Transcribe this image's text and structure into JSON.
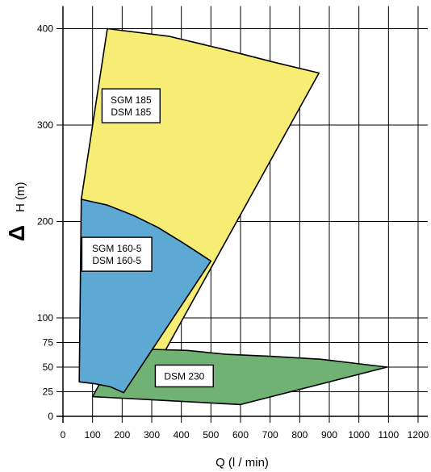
{
  "chart_data": {
    "type": "area",
    "xlabel": "Q (l / min)",
    "ylabel": "H (m)",
    "ylabel_symbol": "Δ",
    "xlim": [
      0,
      1200
    ],
    "ylim": [
      0,
      400
    ],
    "x_ticks": [
      0,
      100,
      200,
      300,
      400,
      500,
      600,
      700,
      800,
      900,
      1000,
      1100,
      1200
    ],
    "y_ticks": [
      0,
      25,
      50,
      75,
      100,
      200,
      300,
      400
    ],
    "grid": true,
    "colors": {
      "sgm185": "#f7ec74",
      "sgm160": "#5ea9d4",
      "dsm230": "#6fb273",
      "outline": "#000000",
      "grid": "#000000"
    },
    "series": [
      {
        "key": "sgm185",
        "polygon": [
          [
            150,
            400
          ],
          [
            360,
            392
          ],
          [
            550,
            378
          ],
          [
            715,
            365
          ],
          [
            865,
            354
          ],
          [
            300,
            42
          ],
          [
            218,
            44
          ],
          [
            165,
            62
          ],
          [
            100,
            145
          ],
          [
            62,
            223
          ]
        ],
        "label_lines": [
          "SGM 185",
          "DSM 185"
        ],
        "label_at": [
          230,
          320
        ]
      },
      {
        "key": "dsm230",
        "polygon": [
          [
            190,
            69
          ],
          [
            300,
            68
          ],
          [
            420,
            67
          ],
          [
            550,
            63
          ],
          [
            700,
            61
          ],
          [
            870,
            58
          ],
          [
            1095,
            50
          ],
          [
            600,
            12
          ],
          [
            100,
            20
          ]
        ],
        "label_lines": [
          "DSM 230"
        ],
        "label_at": [
          410,
          41
        ]
      },
      {
        "key": "sgm160",
        "polygon": [
          [
            62,
            223
          ],
          [
            150,
            217
          ],
          [
            240,
            206
          ],
          [
            320,
            194
          ],
          [
            405,
            178
          ],
          [
            500,
            159
          ],
          [
            205,
            24
          ],
          [
            160,
            30
          ],
          [
            110,
            33
          ],
          [
            55,
            35
          ]
        ],
        "label_lines": [
          "SGM 160-5",
          "DSM 160-5"
        ],
        "label_at": [
          182,
          166
        ]
      }
    ]
  }
}
